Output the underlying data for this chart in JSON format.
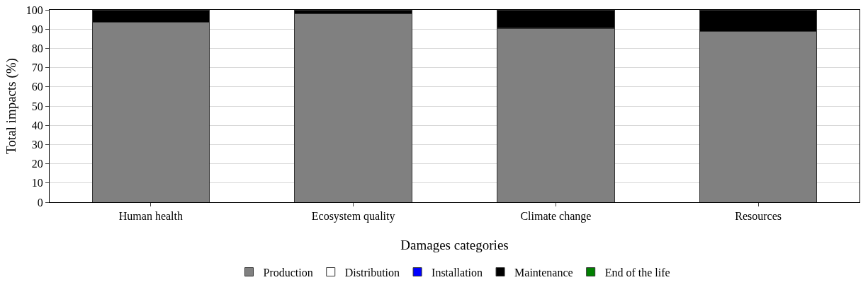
{
  "chart_data": {
    "type": "bar",
    "stacked": true,
    "xlabel": "Damages categories",
    "ylabel": "Total impacts (%)",
    "categories": [
      "Human health",
      "Ecosystem quality",
      "Climate change",
      "Resources"
    ],
    "series": [
      {
        "name": "Production",
        "color": "#808080",
        "values": [
          93.5,
          97.8,
          90.4,
          88.7
        ]
      },
      {
        "name": "Distribution",
        "color": "#ffffff",
        "values": [
          0.1,
          0.1,
          0.1,
          0.1
        ]
      },
      {
        "name": "Installation",
        "color": "#0000ff",
        "values": [
          0,
          0,
          0,
          0
        ]
      },
      {
        "name": "Maintenance",
        "color": "#000000",
        "values": [
          6.1,
          1.8,
          9.2,
          10.9
        ]
      },
      {
        "name": "End of the life",
        "color": "#008000",
        "values": [
          0.3,
          0.3,
          0.3,
          0.3
        ]
      }
    ],
    "ylim": [
      0,
      100
    ],
    "yticks": [
      0,
      10,
      20,
      30,
      40,
      50,
      60,
      70,
      80,
      90,
      100
    ],
    "grid": "y",
    "legend": "bottom"
  }
}
